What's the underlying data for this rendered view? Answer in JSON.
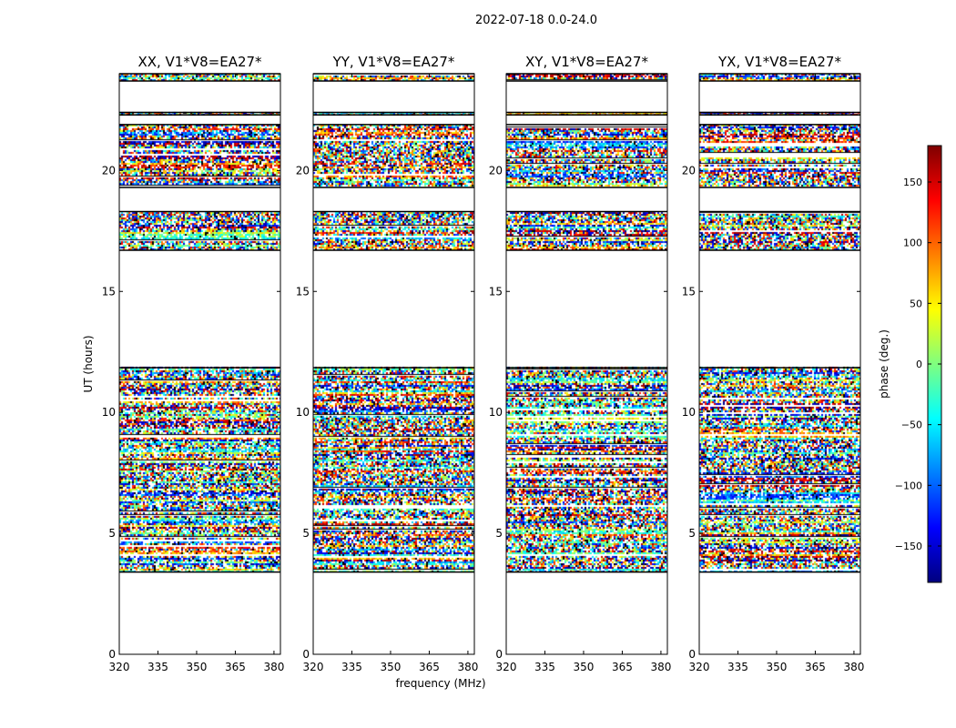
{
  "figure": {
    "suptitle": "2022-07-18 0.0-24.0",
    "xlabel": "frequency (MHz)",
    "ylabel": "UT (hours)"
  },
  "colorbar": {
    "label": "phase (deg.)",
    "range": [
      -180,
      180
    ],
    "ticks": [
      150,
      100,
      50,
      0,
      -50,
      -100,
      -150
    ],
    "tick_labels": [
      "150",
      "100",
      "50",
      "0",
      "−50",
      "−100",
      "−150"
    ],
    "colormap": "jet",
    "colormap_stops": [
      "#00007f",
      "#0000ff",
      "#007fff",
      "#00ffff",
      "#7fff7f",
      "#ffff00",
      "#ff7f00",
      "#ff0000",
      "#7f0000"
    ]
  },
  "chart_data": [
    {
      "type": "heatmap",
      "title": "XX, V1*V8=EA27*",
      "xlim": [
        320,
        382.5
      ],
      "ylim": [
        0,
        24
      ],
      "xticks": [
        320,
        335,
        350,
        365,
        380
      ],
      "yticks": [
        0,
        5,
        10,
        15,
        20
      ],
      "grid": false,
      "data_hours": [
        [
          3.4,
          11.85
        ],
        [
          16.7,
          18.3
        ],
        [
          19.3,
          21.9
        ],
        [
          22.3,
          22.4
        ],
        [
          23.7,
          24.0
        ]
      ],
      "empty_hours": [
        [
          0,
          3.4
        ],
        [
          11.85,
          16.7
        ],
        [
          22.45,
          23.7
        ]
      ]
    },
    {
      "type": "heatmap",
      "title": "YY, V1*V8=EA27*",
      "xlim": [
        320,
        382.5
      ],
      "ylim": [
        0,
        24
      ],
      "xticks": [
        320,
        335,
        350,
        365,
        380
      ],
      "yticks": [
        0,
        5,
        10,
        15,
        20
      ],
      "grid": false,
      "data_hours": [
        [
          3.4,
          11.85
        ],
        [
          16.7,
          18.3
        ],
        [
          19.3,
          21.9
        ],
        [
          22.3,
          22.4
        ],
        [
          23.7,
          24.0
        ]
      ],
      "empty_hours": [
        [
          0,
          3.4
        ],
        [
          11.85,
          16.7
        ],
        [
          22.45,
          23.7
        ]
      ]
    },
    {
      "type": "heatmap",
      "title": "XY, V1*V8=EA27*",
      "xlim": [
        320,
        382.5
      ],
      "ylim": [
        0,
        24
      ],
      "xticks": [
        320,
        335,
        350,
        365,
        380
      ],
      "yticks": [
        0,
        5,
        10,
        15,
        20
      ],
      "grid": false,
      "data_hours": [
        [
          3.4,
          11.85
        ],
        [
          16.7,
          18.3
        ],
        [
          19.3,
          21.9
        ],
        [
          22.3,
          22.4
        ],
        [
          23.7,
          24.0
        ]
      ],
      "empty_hours": [
        [
          0,
          3.4
        ],
        [
          11.85,
          16.7
        ],
        [
          22.45,
          23.7
        ]
      ]
    },
    {
      "type": "heatmap",
      "title": "YX, V1*V8=EA27*",
      "xlim": [
        320,
        382.5
      ],
      "ylim": [
        0,
        24
      ],
      "xticks": [
        320,
        335,
        350,
        365,
        380
      ],
      "yticks": [
        0,
        5,
        10,
        15,
        20
      ],
      "grid": false,
      "data_hours": [
        [
          3.4,
          11.85
        ],
        [
          16.7,
          18.3
        ],
        [
          19.3,
          21.9
        ],
        [
          22.3,
          22.4
        ],
        [
          23.7,
          24.0
        ]
      ],
      "empty_hours": [
        [
          0,
          3.4
        ],
        [
          11.85,
          16.7
        ],
        [
          22.45,
          23.7
        ]
      ]
    }
  ]
}
